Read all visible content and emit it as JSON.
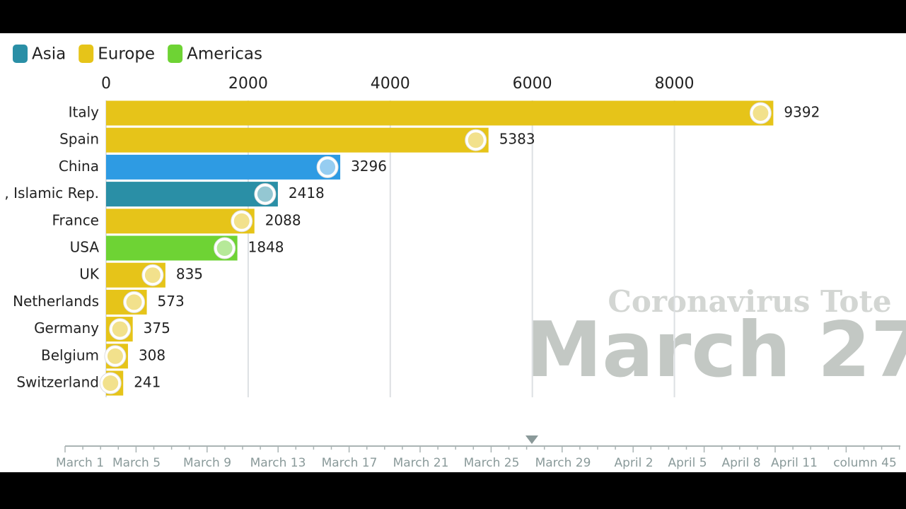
{
  "chart_data": {
    "type": "bar",
    "orientation": "horizontal",
    "categories": [
      "Italy",
      "Spain",
      "China",
      ", Islamic Rep.",
      "France",
      "USA",
      "UK",
      "Netherlands",
      "Germany",
      "Belgium",
      "Switzerland"
    ],
    "values": [
      9392,
      5383,
      3296,
      2418,
      2088,
      1848,
      835,
      573,
      375,
      308,
      241
    ],
    "colors": [
      "#e6c419",
      "#e6c419",
      "#2e9be3",
      "#2a8fa6",
      "#e6c419",
      "#6ed334",
      "#e6c419",
      "#e6c419",
      "#e6c419",
      "#e6c419",
      "#e6c419"
    ],
    "legend": [
      {
        "name": "Asia",
        "color": "#2a8fa6"
      },
      {
        "name": "Europe",
        "color": "#e6c419"
      },
      {
        "name": "Americas",
        "color": "#6ed334"
      }
    ],
    "xlim": [
      0,
      11200
    ],
    "xticks": [
      0,
      2000,
      4000,
      6000,
      8000
    ],
    "grid": true,
    "watermark": {
      "title": "Coronavirus Tote",
      "date": "March 27"
    },
    "timeline": [
      "March 1",
      "March 5",
      "March 9",
      "March 13",
      "March 17",
      "March 21",
      "March 25",
      "March 29",
      "April 2",
      "April 5",
      "April 8",
      "April 11",
      "column 45"
    ]
  }
}
